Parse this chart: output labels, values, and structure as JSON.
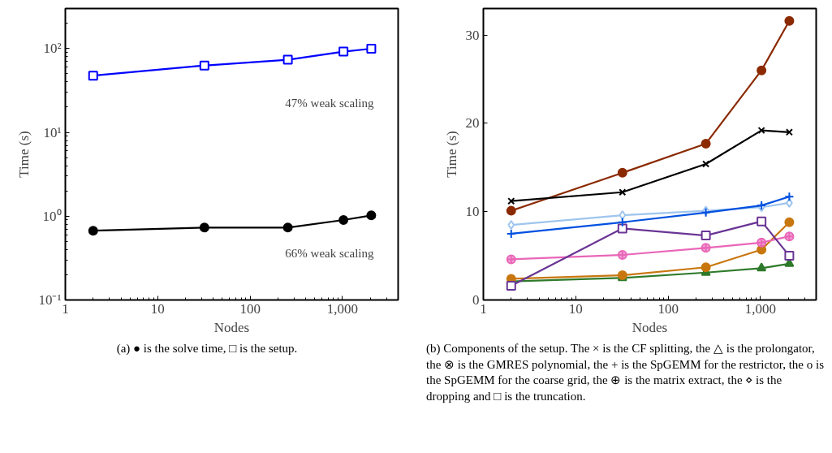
{
  "chart_data": [
    {
      "type": "line",
      "xlabel": "Nodes",
      "ylabel": "Time (s)",
      "log": "xy",
      "grid": false,
      "x": [
        2,
        32,
        256,
        1024,
        2048
      ],
      "xlim": [
        1,
        4000
      ],
      "xticks": [
        1,
        10,
        100,
        {
          "value": 1000,
          "label": "1,000"
        }
      ],
      "ylim": [
        0.1,
        300
      ],
      "yticks": [
        {
          "value": 0.1,
          "label": "10⁻¹"
        },
        {
          "value": 1,
          "label": "10⁰"
        },
        {
          "value": 10,
          "label": "10¹"
        },
        {
          "value": 100,
          "label": "10²"
        }
      ],
      "series": [
        {
          "color": "#0000ff",
          "marker": "square",
          "values": [
            47.5,
            62.7,
            73.5,
            91.8,
            99.5
          ]
        },
        {
          "color": "#000000",
          "marker": "circle",
          "values": [
            0.67,
            0.73,
            0.73,
            0.9,
            1.02
          ]
        }
      ],
      "annotations": [
        "47% weak scaling",
        "66% weak scaling",
        "(a) ● is the solve time, □ is the setup."
      ]
    },
    {
      "type": "line",
      "xlabel": "Nodes",
      "ylabel": "Time (s)",
      "log": "x",
      "grid": false,
      "x": [
        2,
        32,
        256,
        1024,
        2048
      ],
      "xlim": [
        1,
        4000
      ],
      "xticks": [
        1,
        10,
        100,
        {
          "value": 1000,
          "label": "1,000"
        }
      ],
      "ylim": [
        0,
        33
      ],
      "yticks": [
        0,
        10,
        20,
        30
      ],
      "series": [
        {
          "color": "#000000",
          "marker": "x",
          "values": [
            11.2,
            12.2,
            15.4,
            19.2,
            19.0
          ]
        },
        {
          "color": "#8b2a00",
          "marker": "circle",
          "values": [
            10.1,
            14.4,
            17.7,
            26.0,
            31.6
          ]
        },
        {
          "color": "#0050e0",
          "marker": "cross",
          "values": [
            7.5,
            8.8,
            9.9,
            10.7,
            11.7
          ]
        },
        {
          "color": "#9ec5ee",
          "marker": "diamond",
          "values": [
            8.5,
            9.6,
            10.1,
            10.5,
            11.0
          ]
        },
        {
          "color": "#6a3595",
          "marker": "square",
          "values": [
            1.6,
            8.1,
            7.3,
            8.9,
            5.0
          ]
        },
        {
          "color": "#e966b8",
          "marker": "circle cross",
          "values": [
            4.6,
            5.1,
            5.9,
            6.5,
            7.2
          ]
        },
        {
          "color": "#c8770f",
          "marker": "circle",
          "values": [
            2.4,
            2.8,
            3.7,
            5.7,
            8.8
          ]
        },
        {
          "color": "#2e7a2a",
          "marker": "triangle",
          "values": [
            2.1,
            2.5,
            3.1,
            3.6,
            4.1
          ]
        }
      ],
      "annotations": [
        "(b) Components of the setup. The × is the CF splitting, the △ is the prolongator, the ⊗ is the GMRES polynomial, the + is the SpGEMM for the restrictor, the o is the SpGEMM for the coarse grid, the ⊕ is the matrix extract, the ⋄ is the dropping and □ is the truncation."
      ]
    }
  ]
}
